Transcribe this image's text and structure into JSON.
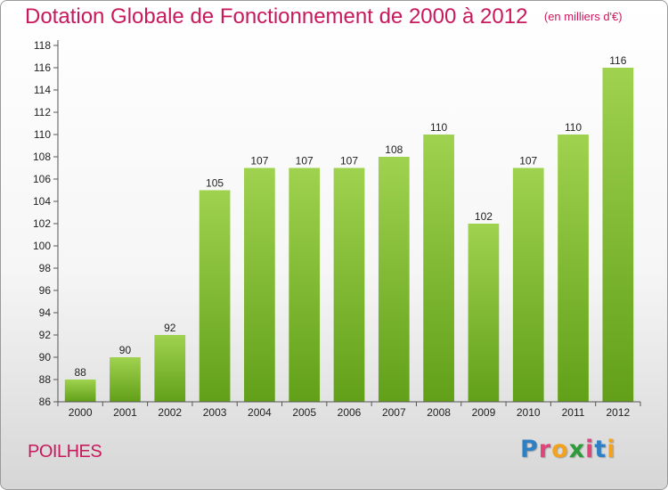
{
  "header": {
    "title": "Dotation Globale de Fonctionnement de 2000 à 2012",
    "unit": "(en milliers d'€)"
  },
  "commune": "POILHES",
  "logo": {
    "letters": [
      "P",
      "r",
      "o",
      "x",
      "i",
      "t",
      "i"
    ],
    "colors": [
      "#2e7fc4",
      "#e0457a",
      "#f2a21c",
      "#2f9a3a",
      "#e0457a",
      "#2e7fc4",
      "#f2a21c"
    ]
  },
  "colors": {
    "bar_light": "#9fd24f",
    "bar_dark": "#62a019",
    "axis": "#555555",
    "title": "#c8195c"
  },
  "chart_data": {
    "type": "bar",
    "title": "Dotation Globale de Fonctionnement de 2000 à 2012",
    "subtitle": "(en milliers d'€)",
    "categories": [
      "2000",
      "2001",
      "2002",
      "2003",
      "2004",
      "2005",
      "2006",
      "2007",
      "2008",
      "2009",
      "2010",
      "2011",
      "2012"
    ],
    "values": [
      88,
      90,
      92,
      105,
      107,
      107,
      107,
      108,
      110,
      102,
      107,
      110,
      116
    ],
    "value_labels": [
      "88",
      "90",
      "92",
      "105",
      "107",
      "107",
      "107",
      "108",
      "110",
      "102",
      "107",
      "110",
      "116"
    ],
    "ylim": [
      86,
      118
    ],
    "yticks": [
      86,
      88,
      90,
      92,
      94,
      96,
      98,
      100,
      102,
      104,
      106,
      108,
      110,
      112,
      114,
      116,
      118
    ],
    "ytick_labels": [
      "86",
      "88",
      "90",
      "92",
      "94",
      "96",
      "98",
      "100",
      "102",
      "104",
      "106",
      "108",
      "110",
      "112",
      "114",
      "116",
      "118"
    ],
    "xlabel": "",
    "ylabel": "",
    "grid": false,
    "legend": "none"
  }
}
